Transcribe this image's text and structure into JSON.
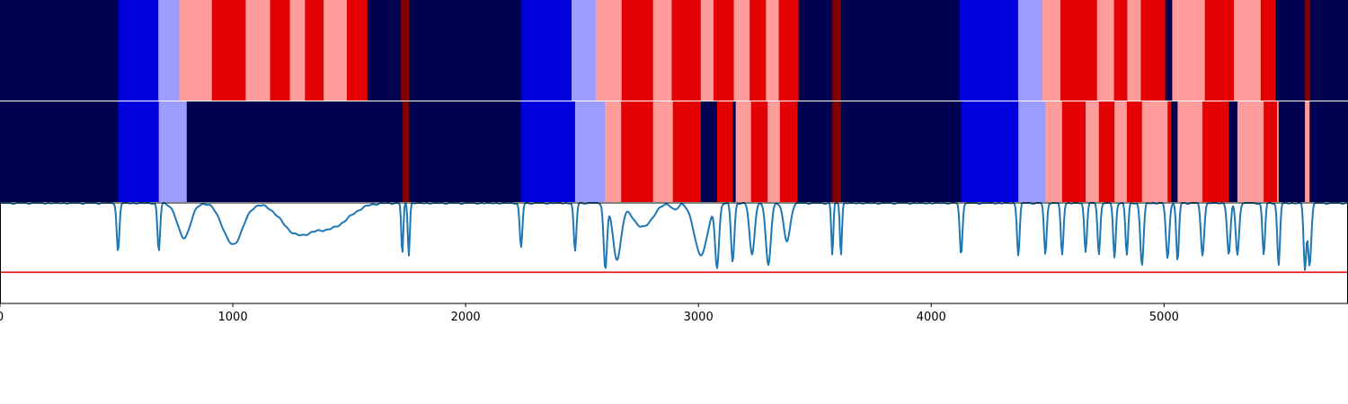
{
  "chart_data": {
    "type": "heatmap",
    "title": "",
    "xlabel": "",
    "xlim": [
      0,
      5790
    ],
    "x_ticks": [
      0,
      1000,
      2000,
      3000,
      4000,
      5000
    ],
    "x_tick_labels": [
      "0",
      "1000",
      "2000",
      "3000",
      "4000",
      "5000"
    ],
    "colors": {
      "0": "#000050",
      "1": "#0000dd",
      "2": "#9d9dff",
      "3": "#ff9d9d",
      "4": "#e30000",
      "5": "#800000"
    },
    "segmentation_rows": [
      {
        "segments": [
          [
            0,
            510,
            0
          ],
          [
            510,
            680,
            1
          ],
          [
            680,
            770,
            2
          ],
          [
            770,
            910,
            3
          ],
          [
            910,
            1055,
            4
          ],
          [
            1055,
            1160,
            3
          ],
          [
            1160,
            1245,
            4
          ],
          [
            1245,
            1310,
            3
          ],
          [
            1310,
            1390,
            4
          ],
          [
            1390,
            1490,
            3
          ],
          [
            1490,
            1578,
            4
          ],
          [
            1578,
            1722,
            0
          ],
          [
            1722,
            1758,
            5
          ],
          [
            1758,
            2240,
            0
          ],
          [
            2240,
            2455,
            1
          ],
          [
            2455,
            2560,
            2
          ],
          [
            2560,
            2670,
            3
          ],
          [
            2670,
            2805,
            4
          ],
          [
            2805,
            2885,
            3
          ],
          [
            2885,
            3010,
            4
          ],
          [
            3010,
            3065,
            3
          ],
          [
            3065,
            3152,
            4
          ],
          [
            3152,
            3220,
            3
          ],
          [
            3220,
            3290,
            4
          ],
          [
            3290,
            3345,
            3
          ],
          [
            3345,
            3430,
            4
          ],
          [
            3430,
            3575,
            0
          ],
          [
            3575,
            3612,
            5
          ],
          [
            3612,
            4120,
            0
          ],
          [
            4120,
            4373,
            1
          ],
          [
            4373,
            4478,
            2
          ],
          [
            4478,
            4555,
            3
          ],
          [
            4555,
            4712,
            4
          ],
          [
            4712,
            4785,
            3
          ],
          [
            4785,
            4842,
            4
          ],
          [
            4842,
            4900,
            3
          ],
          [
            4900,
            5005,
            4
          ],
          [
            5005,
            5035,
            0
          ],
          [
            5035,
            5175,
            3
          ],
          [
            5175,
            5300,
            4
          ],
          [
            5300,
            5415,
            3
          ],
          [
            5415,
            5478,
            4
          ],
          [
            5478,
            5605,
            0
          ],
          [
            5605,
            5628,
            5
          ],
          [
            5628,
            5790,
            0
          ]
        ]
      },
      {
        "segments": [
          [
            0,
            507,
            0
          ],
          [
            507,
            682,
            1
          ],
          [
            682,
            802,
            2
          ],
          [
            802,
            1728,
            0
          ],
          [
            1728,
            1756,
            5
          ],
          [
            1756,
            2238,
            0
          ],
          [
            2238,
            2470,
            1
          ],
          [
            2470,
            2598,
            2
          ],
          [
            2598,
            2668,
            3
          ],
          [
            2668,
            2805,
            4
          ],
          [
            2805,
            2890,
            3
          ],
          [
            2890,
            3010,
            4
          ],
          [
            3010,
            3080,
            0
          ],
          [
            3080,
            3147,
            4
          ],
          [
            3147,
            3160,
            0
          ],
          [
            3160,
            3226,
            3
          ],
          [
            3226,
            3297,
            4
          ],
          [
            3297,
            3350,
            3
          ],
          [
            3350,
            3425,
            4
          ],
          [
            3425,
            3575,
            0
          ],
          [
            3575,
            3612,
            5
          ],
          [
            3612,
            4128,
            0
          ],
          [
            4128,
            4374,
            1
          ],
          [
            4374,
            4490,
            2
          ],
          [
            4490,
            4562,
            3
          ],
          [
            4562,
            4663,
            4
          ],
          [
            4663,
            4720,
            3
          ],
          [
            4720,
            4787,
            4
          ],
          [
            4787,
            4840,
            3
          ],
          [
            4840,
            4905,
            4
          ],
          [
            4905,
            5015,
            3
          ],
          [
            5015,
            5030,
            4
          ],
          [
            5030,
            5058,
            0
          ],
          [
            5058,
            5165,
            3
          ],
          [
            5165,
            5278,
            4
          ],
          [
            5278,
            5315,
            0
          ],
          [
            5315,
            5428,
            3
          ],
          [
            5428,
            5485,
            4
          ],
          [
            5485,
            5492,
            3
          ],
          [
            5492,
            5503,
            0
          ],
          [
            5503,
            5605,
            0
          ],
          [
            5605,
            5625,
            3
          ],
          [
            5625,
            5790,
            0
          ]
        ]
      }
    ],
    "line_series": {
      "color": "#1f77b4",
      "ylim": [
        -1.0,
        0.45
      ],
      "threshold": -0.55,
      "threshold_color": "#e31a1c",
      "baseline": 0.45,
      "dips": [
        [
          507,
          -0.25,
          8
        ],
        [
          682,
          -0.25,
          8
        ],
        [
          790,
          -0.05,
          40
        ],
        [
          1000,
          -0.15,
          60
        ],
        [
          1270,
          0.05,
          90
        ],
        [
          1420,
          0.1,
          110
        ],
        [
          1728,
          -0.3,
          6
        ],
        [
          1756,
          -0.3,
          6
        ],
        [
          2238,
          -0.2,
          8
        ],
        [
          2470,
          -0.25,
          8
        ],
        [
          2600,
          -0.5,
          10
        ],
        [
          2650,
          -0.35,
          25
        ],
        [
          2760,
          0.1,
          60
        ],
        [
          2900,
          0.35,
          20
        ],
        [
          3010,
          -0.3,
          40
        ],
        [
          3080,
          -0.45,
          12
        ],
        [
          3147,
          -0.4,
          10
        ],
        [
          3230,
          -0.3,
          15
        ],
        [
          3300,
          -0.45,
          15
        ],
        [
          3380,
          -0.1,
          20
        ],
        [
          3575,
          -0.3,
          6
        ],
        [
          3612,
          -0.3,
          6
        ],
        [
          4128,
          -0.3,
          8
        ],
        [
          4374,
          -0.3,
          8
        ],
        [
          4490,
          -0.3,
          8
        ],
        [
          4562,
          -0.3,
          8
        ],
        [
          4663,
          -0.25,
          8
        ],
        [
          4720,
          -0.3,
          8
        ],
        [
          4787,
          -0.35,
          8
        ],
        [
          4840,
          -0.3,
          8
        ],
        [
          4905,
          -0.45,
          10
        ],
        [
          5015,
          -0.35,
          10
        ],
        [
          5058,
          -0.4,
          8
        ],
        [
          5165,
          -0.3,
          10
        ],
        [
          5278,
          -0.3,
          10
        ],
        [
          5315,
          -0.3,
          10
        ],
        [
          5428,
          -0.3,
          8
        ],
        [
          5492,
          -0.45,
          8
        ],
        [
          5605,
          -0.5,
          8
        ],
        [
          5625,
          -0.45,
          10
        ]
      ]
    }
  }
}
